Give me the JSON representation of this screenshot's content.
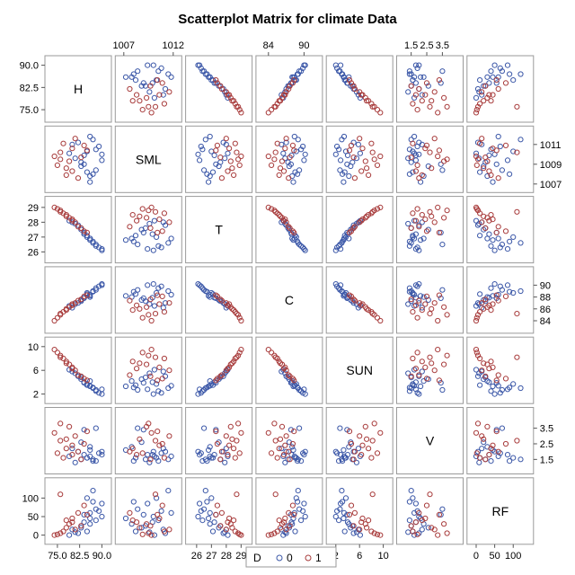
{
  "chart_data": {
    "type": "scatter",
    "title": "Scatterplot Matrix for climate Data",
    "variables": [
      {
        "name": "H",
        "range": [
          72,
          92
        ],
        "ticks": [
          "75.0",
          "82.5",
          "90.0"
        ],
        "tick_values": [
          75,
          82.5,
          90
        ]
      },
      {
        "name": "SML",
        "range": [
          1006.5,
          1012.5
        ],
        "ticks": [
          "1007",
          "1009",
          "1011"
        ],
        "top_ticks": [
          "1007",
          "1012"
        ],
        "tick_values": [
          1007,
          1009,
          1011
        ],
        "top_tick_values": [
          1007,
          1012
        ]
      },
      {
        "name": "T",
        "range": [
          25.5,
          29.5
        ],
        "ticks": [
          "26",
          "27",
          "28",
          "29"
        ],
        "tick_values": [
          26,
          27,
          28,
          29
        ]
      },
      {
        "name": "C",
        "range": [
          82.5,
          92.5
        ],
        "ticks": [
          "84",
          "86",
          "88",
          "90"
        ],
        "top_ticks": [
          "84",
          "90"
        ],
        "tick_values": [
          84,
          86,
          88,
          90
        ],
        "top_tick_values": [
          84,
          90
        ]
      },
      {
        "name": "SUN",
        "range": [
          1,
          11
        ],
        "ticks": [
          "2",
          "6",
          "10"
        ],
        "tick_values": [
          2,
          6,
          10
        ]
      },
      {
        "name": "V",
        "range": [
          0.8,
          4.6
        ],
        "ticks": [
          "1.5",
          "2.5",
          "3.5"
        ],
        "tick_values": [
          1.5,
          2.5,
          3.5
        ]
      },
      {
        "name": "RF",
        "range": [
          -15,
          145
        ],
        "ticks": [
          "0",
          "50",
          "100"
        ],
        "tick_values": [
          0,
          50,
          100
        ]
      }
    ],
    "group_variable": "D",
    "legend": {
      "title": "D",
      "placement": "bottom",
      "entries": [
        "0",
        "1"
      ]
    },
    "series": [
      {
        "name": "0",
        "color": "#3c58a8",
        "points": [
          [
            85,
            1008.2,
            27.1,
            88.5,
            3.5,
            1.6,
            10
          ],
          [
            88,
            1010.5,
            26.4,
            89.5,
            2.5,
            1.4,
            40
          ],
          [
            82,
            1011.2,
            27.8,
            87.0,
            5.0,
            2.0,
            5
          ],
          [
            90,
            1009.4,
            26.2,
            90.0,
            2.8,
            1.8,
            85
          ],
          [
            86,
            1007.8,
            26.9,
            88.0,
            4.2,
            2.3,
            30
          ],
          [
            79,
            1010.1,
            28.1,
            86.5,
            6.1,
            1.7,
            0
          ],
          [
            84,
            1009.0,
            27.3,
            87.8,
            3.9,
            3.4,
            55
          ],
          [
            87,
            1011.5,
            26.6,
            89.0,
            3.0,
            1.5,
            120
          ],
          [
            83,
            1008.8,
            27.5,
            87.5,
            4.5,
            2.6,
            20
          ],
          [
            89,
            1010.8,
            26.3,
            89.8,
            2.2,
            1.9,
            65
          ],
          [
            81,
            1009.6,
            27.9,
            86.8,
            5.5,
            1.3,
            8
          ],
          [
            86,
            1007.2,
            26.8,
            88.2,
            3.3,
            2.1,
            45
          ],
          [
            85,
            1010.3,
            27.0,
            88.7,
            3.7,
            1.6,
            100
          ],
          [
            88,
            1008.4,
            26.5,
            89.2,
            2.7,
            3.5,
            70
          ],
          [
            80,
            1011.0,
            28.0,
            86.2,
            5.8,
            2.2,
            15
          ],
          [
            84,
            1009.9,
            27.2,
            87.9,
            4.0,
            1.8,
            35
          ],
          [
            87,
            1008.0,
            26.7,
            88.9,
            3.1,
            1.4,
            90
          ],
          [
            90,
            1010.0,
            26.1,
            90.2,
            2.0,
            2.0,
            50
          ],
          [
            83,
            1009.2,
            27.6,
            87.3,
            4.8,
            1.5,
            25
          ],
          [
            86,
            1011.8,
            26.9,
            88.4,
            3.4,
            1.7,
            60
          ]
        ]
      },
      {
        "name": "1",
        "color": "#a83c3c",
        "points": [
          [
            76,
            1009.5,
            28.8,
            85.0,
            8.5,
            3.8,
            5
          ],
          [
            78,
            1008.6,
            28.4,
            86.0,
            7.2,
            2.8,
            20
          ],
          [
            80,
            1010.6,
            28.2,
            86.8,
            6.5,
            2.4,
            45
          ],
          [
            74,
            1009.8,
            29.0,
            84.0,
            9.5,
            3.2,
            0
          ],
          [
            82,
            1007.6,
            27.7,
            87.4,
            5.2,
            2.0,
            60
          ],
          [
            77,
            1011.1,
            28.6,
            85.5,
            8.0,
            1.6,
            10
          ],
          [
            79,
            1009.3,
            28.3,
            86.3,
            7.0,
            3.6,
            30
          ],
          [
            84,
            1010.9,
            27.4,
            88.1,
            4.6,
            2.5,
            80
          ],
          [
            75,
            1008.9,
            28.9,
            84.5,
            9.0,
            1.9,
            2
          ],
          [
            81,
            1011.6,
            28.0,
            87.0,
            6.0,
            3.0,
            15
          ],
          [
            78,
            1007.9,
            28.5,
            85.8,
            7.5,
            2.2,
            40
          ],
          [
            83,
            1009.7,
            27.6,
            87.6,
            5.0,
            1.5,
            25
          ],
          [
            76,
            1010.2,
            28.7,
            85.2,
            8.2,
            2.7,
            110
          ],
          [
            80,
            1008.3,
            28.1,
            86.6,
            6.3,
            1.8,
            35
          ],
          [
            85,
            1010.4,
            27.3,
            88.3,
            4.3,
            3.3,
            55
          ]
        ]
      }
    ]
  }
}
